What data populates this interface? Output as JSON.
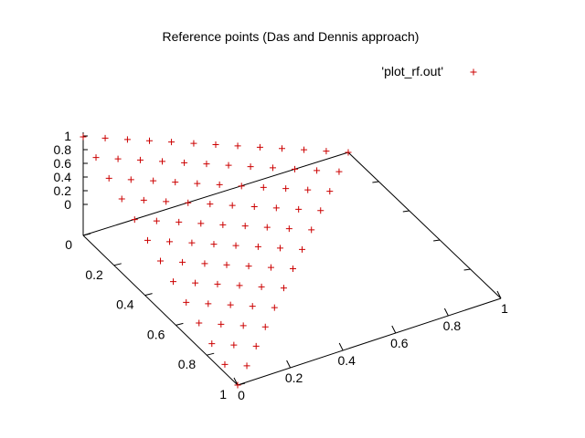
{
  "chart_data": {
    "type": "scatter",
    "title": "Reference points (Das and Dennis approach)",
    "legend": {
      "label": "'plot_rf.out'",
      "marker": "+",
      "position": "top-right"
    },
    "series": [
      {
        "name": "'plot_rf.out'",
        "color": "#cc0000",
        "marker": "+",
        "points": [
          [
            0,
            0,
            1
          ],
          [
            0,
            0.083,
            0.917
          ],
          [
            0,
            0.167,
            0.833
          ],
          [
            0,
            0.25,
            0.75
          ],
          [
            0,
            0.333,
            0.667
          ],
          [
            0,
            0.417,
            0.583
          ],
          [
            0,
            0.5,
            0.5
          ],
          [
            0,
            0.583,
            0.417
          ],
          [
            0,
            0.667,
            0.333
          ],
          [
            0,
            0.75,
            0.25
          ],
          [
            0,
            0.833,
            0.167
          ],
          [
            0,
            0.917,
            0.083
          ],
          [
            0,
            1,
            0
          ],
          [
            0.083,
            0,
            0.917
          ],
          [
            0.083,
            0.083,
            0.833
          ],
          [
            0.083,
            0.167,
            0.75
          ],
          [
            0.083,
            0.25,
            0.667
          ],
          [
            0.083,
            0.333,
            0.583
          ],
          [
            0.083,
            0.417,
            0.5
          ],
          [
            0.083,
            0.5,
            0.417
          ],
          [
            0.083,
            0.583,
            0.333
          ],
          [
            0.083,
            0.667,
            0.25
          ],
          [
            0.083,
            0.75,
            0.167
          ],
          [
            0.083,
            0.833,
            0.083
          ],
          [
            0.083,
            0.917,
            0
          ],
          [
            0.167,
            0,
            0.833
          ],
          [
            0.167,
            0.083,
            0.75
          ],
          [
            0.167,
            0.167,
            0.667
          ],
          [
            0.167,
            0.25,
            0.583
          ],
          [
            0.167,
            0.333,
            0.5
          ],
          [
            0.167,
            0.417,
            0.417
          ],
          [
            0.167,
            0.5,
            0.333
          ],
          [
            0.167,
            0.583,
            0.25
          ],
          [
            0.167,
            0.667,
            0.167
          ],
          [
            0.167,
            0.75,
            0.083
          ],
          [
            0.167,
            0.833,
            0
          ],
          [
            0.25,
            0,
            0.75
          ],
          [
            0.25,
            0.083,
            0.667
          ],
          [
            0.25,
            0.167,
            0.583
          ],
          [
            0.25,
            0.25,
            0.5
          ],
          [
            0.25,
            0.333,
            0.417
          ],
          [
            0.25,
            0.417,
            0.333
          ],
          [
            0.25,
            0.5,
            0.25
          ],
          [
            0.25,
            0.583,
            0.167
          ],
          [
            0.25,
            0.667,
            0.083
          ],
          [
            0.25,
            0.75,
            0
          ],
          [
            0.333,
            0,
            0.667
          ],
          [
            0.333,
            0.083,
            0.583
          ],
          [
            0.333,
            0.167,
            0.5
          ],
          [
            0.333,
            0.25,
            0.417
          ],
          [
            0.333,
            0.333,
            0.333
          ],
          [
            0.333,
            0.417,
            0.25
          ],
          [
            0.333,
            0.5,
            0.167
          ],
          [
            0.333,
            0.583,
            0.083
          ],
          [
            0.333,
            0.667,
            0
          ],
          [
            0.417,
            0,
            0.583
          ],
          [
            0.417,
            0.083,
            0.5
          ],
          [
            0.417,
            0.167,
            0.417
          ],
          [
            0.417,
            0.25,
            0.333
          ],
          [
            0.417,
            0.333,
            0.25
          ],
          [
            0.417,
            0.417,
            0.167
          ],
          [
            0.417,
            0.5,
            0.083
          ],
          [
            0.417,
            0.583,
            0
          ],
          [
            0.5,
            0,
            0.5
          ],
          [
            0.5,
            0.083,
            0.417
          ],
          [
            0.5,
            0.167,
            0.333
          ],
          [
            0.5,
            0.25,
            0.25
          ],
          [
            0.5,
            0.333,
            0.167
          ],
          [
            0.5,
            0.417,
            0.083
          ],
          [
            0.5,
            0.5,
            0
          ],
          [
            0.583,
            0,
            0.417
          ],
          [
            0.583,
            0.083,
            0.333
          ],
          [
            0.583,
            0.167,
            0.25
          ],
          [
            0.583,
            0.25,
            0.167
          ],
          [
            0.583,
            0.333,
            0.083
          ],
          [
            0.583,
            0.417,
            0
          ],
          [
            0.667,
            0,
            0.333
          ],
          [
            0.667,
            0.083,
            0.25
          ],
          [
            0.667,
            0.167,
            0.167
          ],
          [
            0.667,
            0.25,
            0.083
          ],
          [
            0.667,
            0.333,
            0
          ],
          [
            0.75,
            0,
            0.25
          ],
          [
            0.75,
            0.083,
            0.167
          ],
          [
            0.75,
            0.167,
            0.083
          ],
          [
            0.75,
            0.25,
            0
          ],
          [
            0.833,
            0,
            0.167
          ],
          [
            0.833,
            0.083,
            0.083
          ],
          [
            0.833,
            0.167,
            0
          ],
          [
            0.917,
            0,
            0.083
          ],
          [
            0.917,
            0.083,
            0
          ],
          [
            1,
            0,
            0
          ]
        ]
      }
    ],
    "axes": {
      "x": {
        "range": [
          0,
          1
        ],
        "ticks": [
          "0",
          "0.2",
          "0.4",
          "0.6",
          "0.8",
          "1"
        ]
      },
      "y": {
        "range": [
          0,
          1
        ],
        "ticks": [
          "0",
          "0.2",
          "0.4",
          "0.6",
          "0.8",
          "1"
        ]
      },
      "z": {
        "range": [
          0,
          1
        ],
        "ticks": [
          "0",
          "0.2",
          "0.4",
          "0.6",
          "0.8",
          "1"
        ]
      }
    },
    "grid": false
  }
}
